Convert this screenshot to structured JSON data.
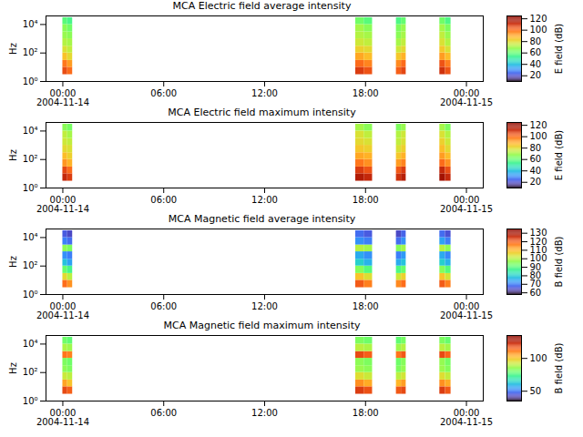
{
  "chart_data": [
    {
      "type": "heatmap",
      "title": "MCA  Electric field average intensity",
      "y_label": "Hz",
      "log": "y",
      "grid": false,
      "xlim": [
        "2004-11-13T23:00",
        "2004-11-15T01:00"
      ],
      "xticks": [
        {
          "value": "2004-11-14T00:00",
          "label": "00:00\n2004-11-14"
        },
        {
          "value": "2004-11-14T06:00",
          "label": "06:00"
        },
        {
          "value": "2004-11-14T12:00",
          "label": "12:00"
        },
        {
          "value": "2004-11-14T18:00",
          "label": "18:00"
        },
        {
          "value": "2004-11-15T00:00",
          "label": "00:00\n2004-11-15"
        }
      ],
      "ylim": [
        1,
        40000
      ],
      "yticks": [
        {
          "value": 1,
          "label": "10⁰"
        },
        {
          "value": 100,
          "label": "10²"
        },
        {
          "value": 10000,
          "label": "10⁴"
        }
      ],
      "x_bins": [
        [
          "2004-11-14T00:00",
          "2004-11-14T00:17"
        ],
        [
          "2004-11-14T00:17",
          "2004-11-14T00:35"
        ],
        [
          "2004-11-14T17:25",
          "2004-11-14T17:55"
        ],
        [
          "2004-11-14T17:55",
          "2004-11-14T18:25"
        ],
        [
          "2004-11-14T19:50",
          "2004-11-14T20:08"
        ],
        [
          "2004-11-14T20:08",
          "2004-11-14T20:25"
        ],
        [
          "2004-11-14T22:25",
          "2004-11-14T22:45"
        ],
        [
          "2004-11-14T22:45",
          "2004-11-14T23:05"
        ]
      ],
      "y_bins": [
        3,
        10,
        30,
        100,
        300,
        1000,
        3000,
        10000,
        30000
      ],
      "cells": [
        [
          105,
          100,
          108,
          104,
          102,
          106,
          110,
          104
        ],
        [
          98,
          92,
          100,
          96,
          95,
          100,
          104,
          97
        ],
        [
          85,
          80,
          90,
          86,
          84,
          88,
          92,
          86
        ],
        [
          78,
          74,
          82,
          80,
          76,
          80,
          84,
          78
        ],
        [
          72,
          70,
          76,
          74,
          70,
          74,
          78,
          72
        ],
        [
          68,
          66,
          72,
          70,
          66,
          70,
          74,
          68
        ],
        [
          66,
          62,
          70,
          66,
          64,
          68,
          70,
          64
        ],
        [
          58,
          55,
          62,
          58,
          56,
          60,
          62,
          56
        ]
      ],
      "colorbar": {
        "label": "E field (dB)",
        "range": [
          10,
          125
        ],
        "ticks": [
          20,
          40,
          60,
          80,
          100,
          120
        ]
      }
    },
    {
      "type": "heatmap",
      "title": "MCA  Electric field maximum intensity",
      "y_label": "Hz",
      "log": "y",
      "grid": false,
      "xlim": [
        "2004-11-13T23:00",
        "2004-11-15T01:00"
      ],
      "xticks": [
        {
          "value": "2004-11-14T00:00",
          "label": "00:00\n2004-11-14"
        },
        {
          "value": "2004-11-14T06:00",
          "label": "06:00"
        },
        {
          "value": "2004-11-14T12:00",
          "label": "12:00"
        },
        {
          "value": "2004-11-14T18:00",
          "label": "18:00"
        },
        {
          "value": "2004-11-15T00:00",
          "label": "00:00\n2004-11-15"
        }
      ],
      "ylim": [
        1,
        40000
      ],
      "yticks": [
        {
          "value": 1,
          "label": "10⁰"
        },
        {
          "value": 100,
          "label": "10²"
        },
        {
          "value": 10000,
          "label": "10⁴"
        }
      ],
      "x_bins": [
        [
          "2004-11-14T00:00",
          "2004-11-14T00:17"
        ],
        [
          "2004-11-14T00:17",
          "2004-11-14T00:35"
        ],
        [
          "2004-11-14T17:25",
          "2004-11-14T17:55"
        ],
        [
          "2004-11-14T17:55",
          "2004-11-14T18:25"
        ],
        [
          "2004-11-14T19:50",
          "2004-11-14T20:08"
        ],
        [
          "2004-11-14T20:08",
          "2004-11-14T20:25"
        ],
        [
          "2004-11-14T22:25",
          "2004-11-14T22:45"
        ],
        [
          "2004-11-14T22:45",
          "2004-11-14T23:05"
        ]
      ],
      "y_bins": [
        3,
        10,
        30,
        100,
        300,
        1000,
        3000,
        10000,
        30000
      ],
      "cells": [
        [
          112,
          108,
          115,
          112,
          110,
          114,
          118,
          112
        ],
        [
          106,
          100,
          108,
          104,
          103,
          108,
          112,
          105
        ],
        [
          93,
          88,
          98,
          94,
          92,
          96,
          100,
          94
        ],
        [
          86,
          82,
          90,
          88,
          84,
          88,
          92,
          86
        ],
        [
          80,
          78,
          84,
          82,
          78,
          82,
          86,
          80
        ],
        [
          76,
          74,
          80,
          78,
          74,
          78,
          82,
          76
        ],
        [
          74,
          70,
          78,
          74,
          72,
          76,
          78,
          72
        ],
        [
          66,
          63,
          70,
          66,
          64,
          68,
          70,
          64
        ]
      ],
      "colorbar": {
        "label": "E field (dB)",
        "range": [
          10,
          125
        ],
        "ticks": [
          20,
          40,
          60,
          80,
          100,
          120
        ]
      }
    },
    {
      "type": "heatmap",
      "title": "MCA  Magnetic field average intensity",
      "y_label": "Hz",
      "log": "y",
      "grid": false,
      "xlim": [
        "2004-11-13T23:00",
        "2004-11-15T01:00"
      ],
      "xticks": [
        {
          "value": "2004-11-14T00:00",
          "label": "00:00\n2004-11-14"
        },
        {
          "value": "2004-11-14T06:00",
          "label": "06:00"
        },
        {
          "value": "2004-11-14T12:00",
          "label": "12:00"
        },
        {
          "value": "2004-11-14T18:00",
          "label": "18:00"
        },
        {
          "value": "2004-11-15T00:00",
          "label": "00:00\n2004-11-15"
        }
      ],
      "ylim": [
        1,
        40000
      ],
      "yticks": [
        {
          "value": 1,
          "label": "10⁰"
        },
        {
          "value": 100,
          "label": "10²"
        },
        {
          "value": 10000,
          "label": "10⁴"
        }
      ],
      "x_bins": [
        [
          "2004-11-14T00:00",
          "2004-11-14T00:17"
        ],
        [
          "2004-11-14T00:17",
          "2004-11-14T00:35"
        ],
        [
          "2004-11-14T17:25",
          "2004-11-14T17:55"
        ],
        [
          "2004-11-14T17:55",
          "2004-11-14T18:25"
        ],
        [
          "2004-11-14T19:50",
          "2004-11-14T20:08"
        ],
        [
          "2004-11-14T20:08",
          "2004-11-14T20:25"
        ],
        [
          "2004-11-14T22:25",
          "2004-11-14T22:45"
        ],
        [
          "2004-11-14T22:45",
          "2004-11-14T23:05"
        ]
      ],
      "y_bins": [
        3,
        10,
        30,
        100,
        300,
        1000,
        3000,
        10000,
        30000
      ],
      "cells": [
        [
          118,
          114,
          120,
          116,
          115,
          118,
          120,
          116
        ],
        [
          105,
          100,
          108,
          104,
          102,
          106,
          108,
          103
        ],
        [
          92,
          88,
          95,
          90,
          89,
          92,
          95,
          90
        ],
        [
          78,
          74,
          80,
          76,
          75,
          78,
          80,
          76
        ],
        [
          72,
          70,
          75,
          72,
          70,
          73,
          75,
          71
        ],
        [
          96,
          94,
          100,
          98,
          95,
          98,
          100,
          96
        ],
        [
          70,
          68,
          72,
          70,
          68,
          72,
          74,
          70
        ],
        [
          66,
          64,
          68,
          66,
          64,
          67,
          68,
          65
        ]
      ],
      "colorbar": {
        "label": "B field (dB)",
        "range": [
          58,
          135
        ],
        "ticks": [
          60,
          70,
          80,
          90,
          100,
          110,
          120,
          130
        ]
      }
    },
    {
      "type": "heatmap",
      "title": "MCA  Magnetic field maximum intensity",
      "y_label": "Hz",
      "log": "y",
      "grid": false,
      "xlim": [
        "2004-11-13T23:00",
        "2004-11-15T01:00"
      ],
      "xticks": [
        {
          "value": "2004-11-14T00:00",
          "label": "00:00\n2004-11-14"
        },
        {
          "value": "2004-11-14T06:00",
          "label": "06:00"
        },
        {
          "value": "2004-11-14T12:00",
          "label": "12:00"
        },
        {
          "value": "2004-11-14T18:00",
          "label": "18:00"
        },
        {
          "value": "2004-11-15T00:00",
          "label": "00:00\n2004-11-15"
        }
      ],
      "ylim": [
        1,
        40000
      ],
      "yticks": [
        {
          "value": 1,
          "label": "10⁰"
        },
        {
          "value": 100,
          "label": "10²"
        },
        {
          "value": 10000,
          "label": "10⁴"
        }
      ],
      "x_bins": [
        [
          "2004-11-14T00:00",
          "2004-11-14T00:17"
        ],
        [
          "2004-11-14T00:17",
          "2004-11-14T00:35"
        ],
        [
          "2004-11-14T17:25",
          "2004-11-14T17:55"
        ],
        [
          "2004-11-14T17:55",
          "2004-11-14T18:25"
        ],
        [
          "2004-11-14T19:50",
          "2004-11-14T20:08"
        ],
        [
          "2004-11-14T20:08",
          "2004-11-14T20:25"
        ],
        [
          "2004-11-14T22:25",
          "2004-11-14T22:45"
        ],
        [
          "2004-11-14T22:45",
          "2004-11-14T23:05"
        ]
      ],
      "y_bins": [
        3,
        10,
        30,
        100,
        300,
        1000,
        3000,
        10000,
        30000
      ],
      "cells": [
        [
          118,
          115,
          120,
          117,
          116,
          118,
          120,
          116
        ],
        [
          105,
          100,
          108,
          104,
          102,
          106,
          108,
          104
        ],
        [
          92,
          90,
          95,
          92,
          90,
          93,
          95,
          91
        ],
        [
          84,
          82,
          86,
          84,
          82,
          85,
          86,
          83
        ],
        [
          82,
          80,
          84,
          82,
          80,
          83,
          85,
          81
        ],
        [
          112,
          110,
          118,
          115,
          112,
          116,
          118,
          114
        ],
        [
          88,
          86,
          90,
          88,
          86,
          89,
          90,
          87
        ],
        [
          80,
          78,
          82,
          80,
          78,
          81,
          82,
          79
        ]
      ],
      "colorbar": {
        "label": "B field (dB)",
        "range": [
          35,
          135
        ],
        "ticks": [
          50,
          100
        ]
      }
    }
  ]
}
